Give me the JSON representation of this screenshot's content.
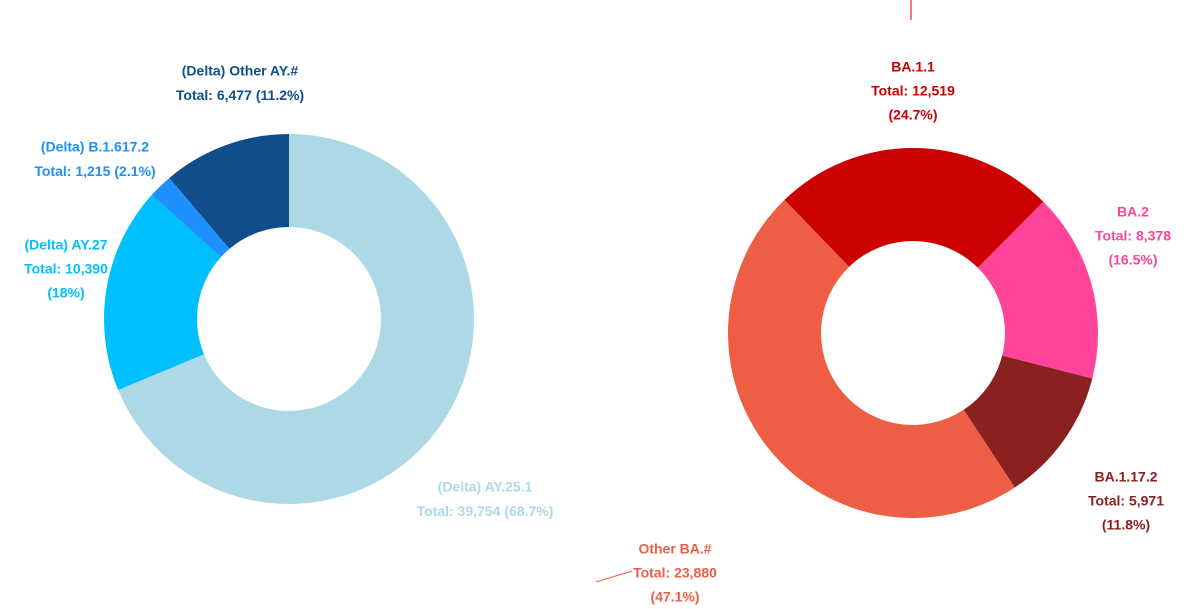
{
  "chart_data": [
    {
      "type": "donut",
      "categories": [
        "(Delta) AY.25.1",
        "(Delta) AY.27",
        "(Delta) B.1.617.2",
        "(Delta) Other AY.#"
      ],
      "values": [
        39754,
        10390,
        1215,
        6477
      ],
      "value_labels": [
        "Total: 39,754",
        "Total: 10,390",
        "Total: 1,215",
        "Total: 6,477"
      ],
      "percents": [
        68.7,
        18,
        2.1,
        11.2
      ],
      "percent_labels": [
        "(68.7%)",
        "(18%)",
        "(2.1%)",
        "(11.2%)"
      ],
      "colors": [
        "#add8e6",
        "#00bfff",
        "#1e90ff",
        "#104e8b"
      ]
    },
    {
      "type": "donut",
      "categories": [
        "BA.1.1",
        "BA.2",
        "BA.1.17.2",
        "Other BA.#"
      ],
      "values": [
        12519,
        8378,
        5971,
        23880
      ],
      "value_labels": [
        "Total: 12,519",
        "Total: 8,378",
        "Total: 5,971",
        "Total: 23,880"
      ],
      "percents": [
        24.7,
        16.5,
        11.8,
        47.1
      ],
      "percent_labels": [
        "(24.7%)",
        "(16.5%)",
        "(11.8%)",
        "(47.1%)"
      ],
      "colors": [
        "#cc0000",
        "#ff4499",
        "#8b2020",
        "#ee5e44"
      ]
    }
  ]
}
